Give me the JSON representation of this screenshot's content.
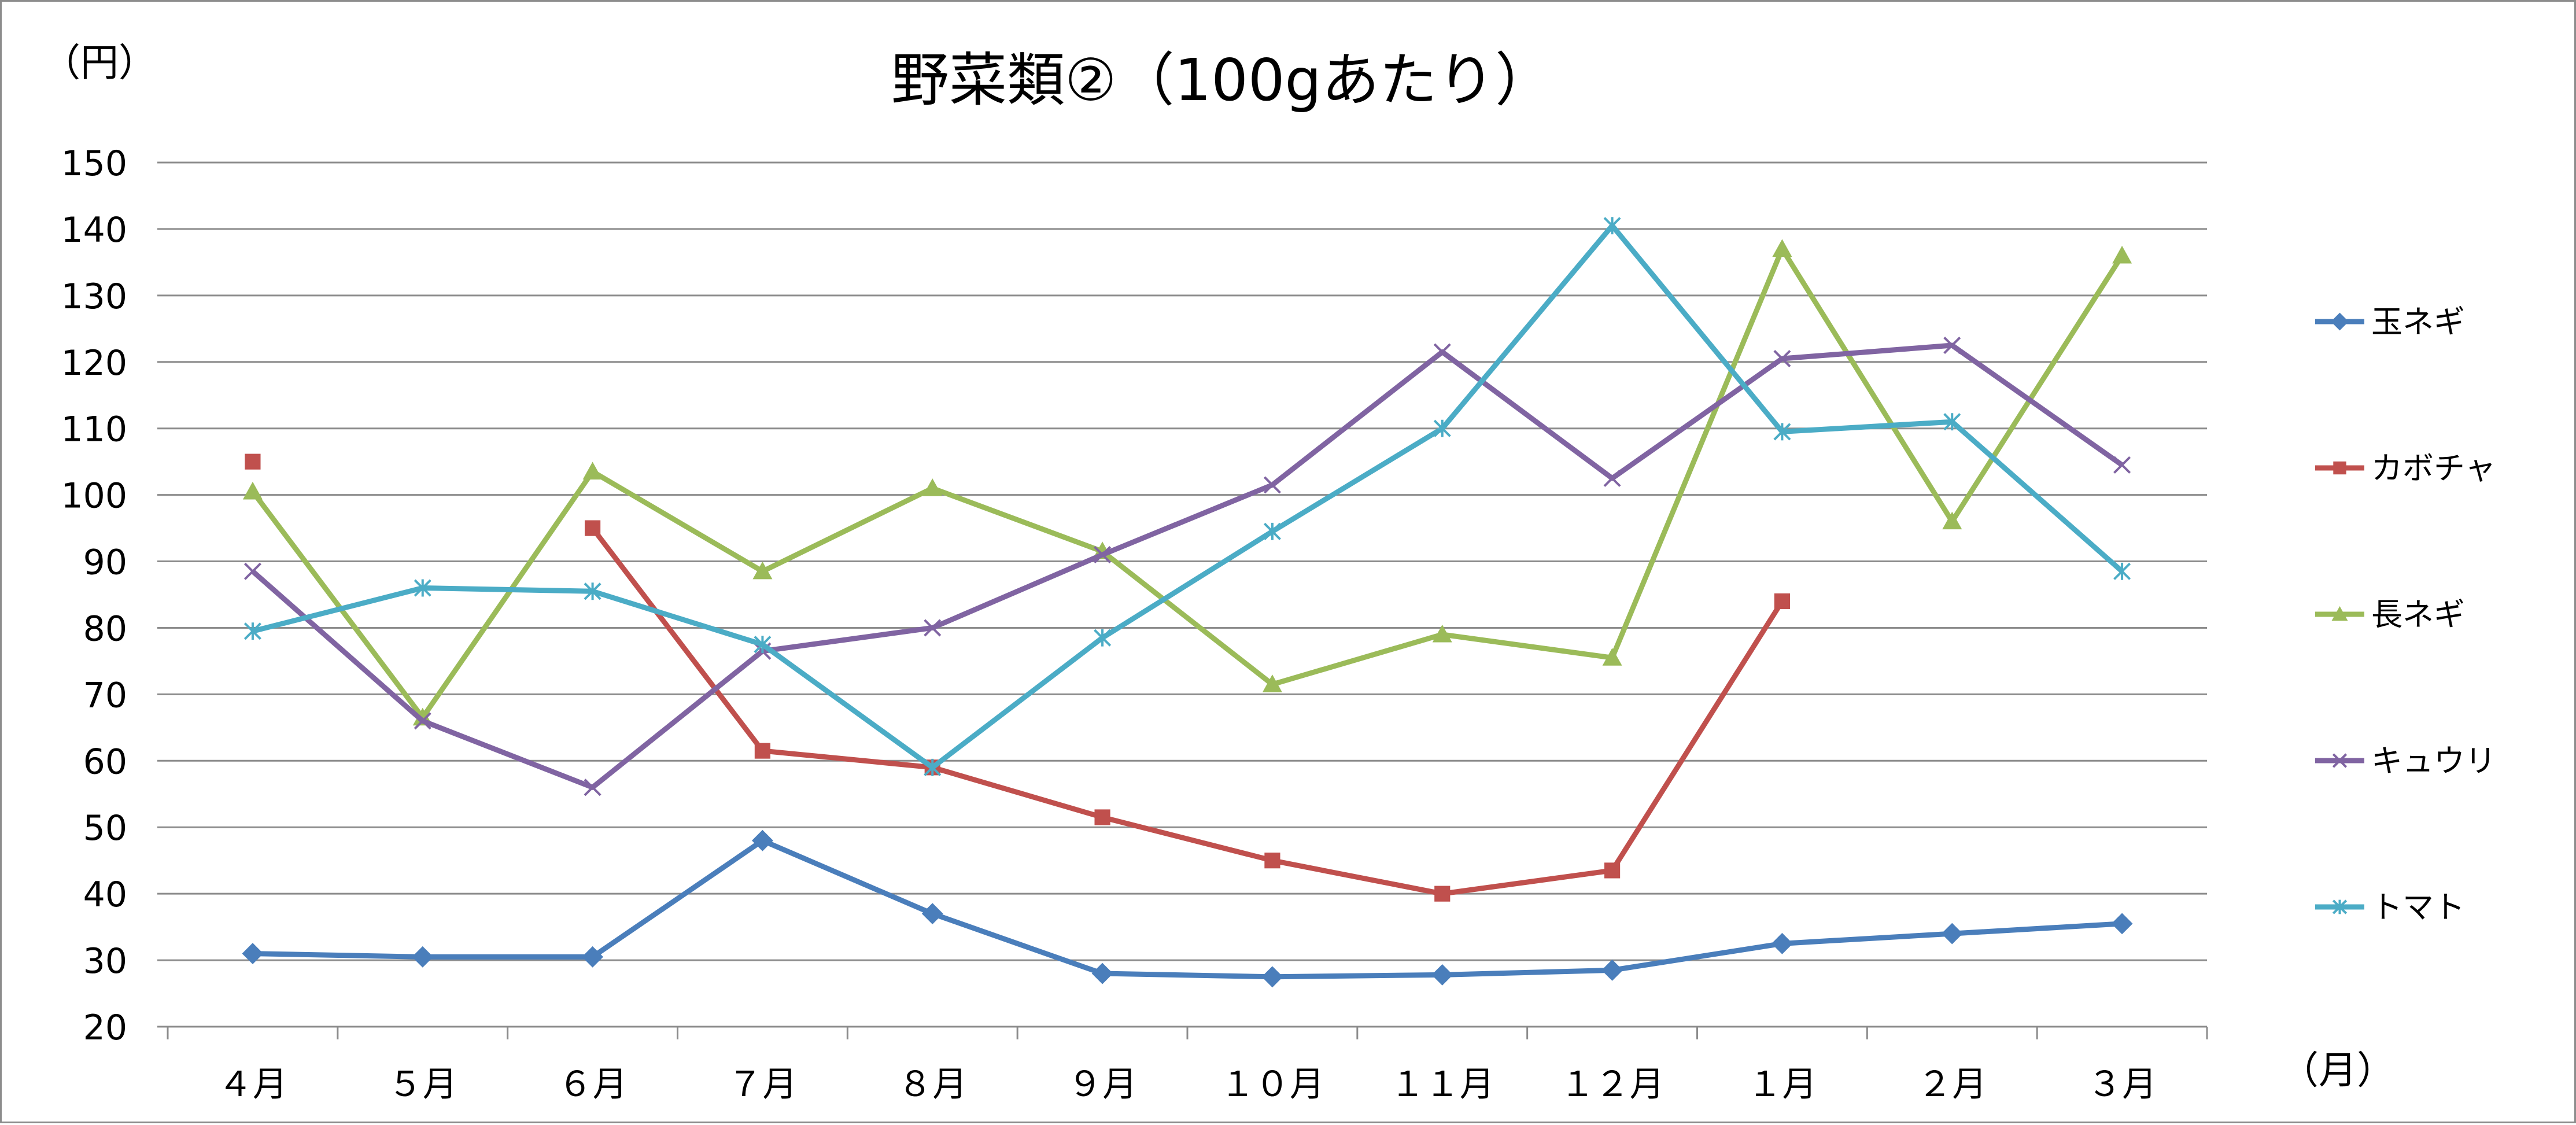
{
  "chart_data": {
    "type": "line",
    "title": "野菜類②（100gあたり）",
    "ylabel": "（円）",
    "xlabel": "（月）",
    "ylim": [
      20,
      150
    ],
    "yticks": [
      20,
      30,
      40,
      50,
      60,
      70,
      80,
      90,
      100,
      110,
      120,
      130,
      140,
      150
    ],
    "grid": true,
    "legend_position": "right",
    "categories": [
      "４月",
      "５月",
      "６月",
      "７月",
      "８月",
      "９月",
      "１０月",
      "１１月",
      "１２月",
      "１月",
      "２月",
      "３月"
    ],
    "series": [
      {
        "name": "玉ネギ",
        "color": "#4a7ebb",
        "marker": "diamond",
        "values": [
          31,
          30.5,
          30.5,
          48,
          37,
          28,
          27.5,
          27.8,
          28.5,
          32.5,
          34,
          35.5
        ]
      },
      {
        "name": "カボチャ",
        "color": "#c0504d",
        "marker": "square",
        "values": [
          105,
          null,
          95,
          61.5,
          59,
          51.5,
          45,
          40,
          43.5,
          84,
          null,
          null
        ]
      },
      {
        "name": "長ネギ",
        "color": "#9bbb59",
        "marker": "triangle",
        "values": [
          100.5,
          66.5,
          103.5,
          88.5,
          101,
          91.5,
          71.5,
          79,
          75.5,
          137,
          96,
          136
        ]
      },
      {
        "name": "キュウリ",
        "color": "#8064a2",
        "marker": "x",
        "values": [
          88.5,
          66,
          56,
          76.5,
          80,
          91,
          101.5,
          121.5,
          102.5,
          120.5,
          122.5,
          104.5
        ]
      },
      {
        "name": "トマト",
        "color": "#4bacc6",
        "marker": "star",
        "values": [
          79.5,
          86,
          85.5,
          77.5,
          59,
          78.5,
          94.5,
          110,
          140.5,
          109.5,
          111,
          88.5
        ]
      }
    ]
  }
}
